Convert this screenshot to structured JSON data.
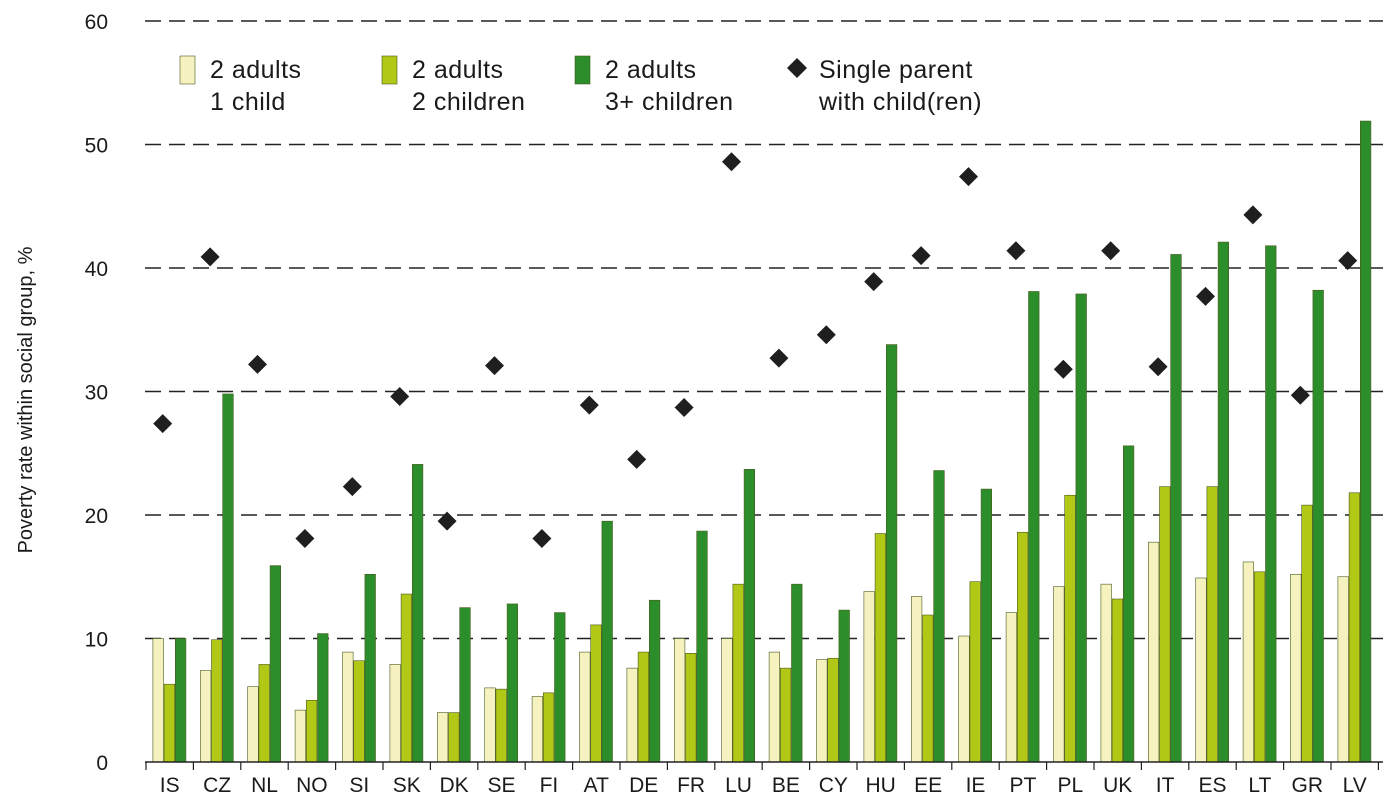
{
  "chart_data": {
    "type": "bar",
    "ylabel": "Poverty rate within social group, %",
    "ylim": [
      0,
      60
    ],
    "yticks": [
      0,
      10,
      20,
      30,
      40,
      50,
      60
    ],
    "grid": "dashed horizontal",
    "legend_position": "top-left",
    "categories": [
      "IS",
      "CZ",
      "NL",
      "NO",
      "SI",
      "SK",
      "DK",
      "SE",
      "FI",
      "AT",
      "DE",
      "FR",
      "LU",
      "BE",
      "CY",
      "HU",
      "EE",
      "IE",
      "PT",
      "PL",
      "UK",
      "IT",
      "ES",
      "LT",
      "GR",
      "LV"
    ],
    "series": [
      {
        "name": "2 adults 1 child",
        "legend_lines": [
          "2 adults",
          "1 child"
        ],
        "kind": "bar",
        "color": "#f6f2bf",
        "values": [
          10,
          7.4,
          6.1,
          4.2,
          8.9,
          7.9,
          4.0,
          6.0,
          5.3,
          8.9,
          7.6,
          10,
          10,
          8.9,
          8.3,
          13.8,
          13.4,
          10.2,
          12.1,
          14.2,
          14.4,
          17.8,
          14.9,
          16.2,
          15.2,
          15.0
        ]
      },
      {
        "name": "2 adults 2 children",
        "legend_lines": [
          "2 adults",
          "2 children"
        ],
        "kind": "bar",
        "color": "#b2c817",
        "values": [
          6.3,
          9.9,
          7.9,
          5.0,
          8.2,
          13.6,
          4.0,
          5.9,
          5.6,
          11.1,
          8.9,
          8.8,
          14.4,
          7.6,
          8.4,
          18.5,
          11.9,
          14.6,
          18.6,
          21.6,
          13.2,
          22.3,
          22.3,
          15.4,
          20.8,
          21.8
        ]
      },
      {
        "name": "2 adults 3+ children",
        "legend_lines": [
          "2 adults",
          "3+ children"
        ],
        "kind": "bar",
        "color": "#2b8e2b",
        "values": [
          10,
          29.8,
          15.9,
          10.4,
          15.2,
          24.1,
          12.5,
          12.8,
          12.1,
          19.5,
          13.1,
          18.7,
          23.7,
          14.4,
          12.3,
          33.8,
          23.6,
          22.1,
          38.1,
          37.9,
          25.6,
          41.1,
          42.1,
          41.8,
          38.2,
          51.9
        ]
      },
      {
        "name": "Single parent with child(ren)",
        "legend_lines": [
          "Single parent",
          "with child(ren)"
        ],
        "kind": "point",
        "color": "#1f1f1f",
        "values": [
          27.4,
          40.9,
          32.2,
          18.1,
          22.3,
          29.6,
          19.5,
          32.1,
          18.1,
          28.9,
          24.5,
          28.7,
          48.6,
          32.7,
          34.6,
          38.9,
          41.0,
          47.4,
          41.4,
          31.8,
          41.4,
          32.0,
          37.7,
          44.3,
          29.7,
          40.6
        ]
      }
    ]
  }
}
